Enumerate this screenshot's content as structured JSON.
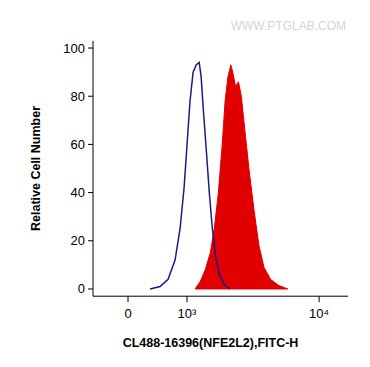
{
  "chart_data": {
    "type": "area",
    "watermark": "WWW.PTGLAB.COM",
    "x_label": "CL488-16396(NFE2L2),FITC-H",
    "y_label": "Relative Cell Number",
    "xlim": [
      -540,
      16000
    ],
    "xticks": [
      0,
      {
        "value": 1000,
        "label": "10³"
      },
      {
        "value": 10000,
        "label": "10⁴"
      }
    ],
    "ylim": [
      -3,
      103
    ],
    "yticks": [
      0,
      20,
      40,
      60,
      80,
      100
    ],
    "grid": false,
    "series": [
      {
        "type": "area",
        "color": "#e00000",
        "x": [
          1185,
          1312,
          1449,
          1593,
          1714,
          1848,
          1979,
          2084,
          2190,
          2304,
          2381,
          2503,
          2630,
          2760,
          2944,
          3141,
          3419,
          3717,
          4041,
          4510,
          5138,
          5985
        ],
        "values": [
          0,
          3,
          8,
          15,
          25,
          40,
          60,
          78,
          88,
          93,
          90,
          84,
          86,
          80,
          65,
          50,
          33,
          18,
          9,
          4,
          1.5,
          0
        ]
      },
      {
        "type": "line",
        "color": "#1a1a8c",
        "x": [
          329,
          489,
          627,
          756,
          854,
          937,
          1001,
          1067,
          1138,
          1211,
          1287,
          1338,
          1393,
          1476,
          1564,
          1656,
          1750,
          1884,
          2043,
          2266
        ],
        "values": [
          0,
          1,
          4,
          12,
          25,
          42,
          60,
          78,
          90,
          93,
          94,
          88,
          75,
          58,
          40,
          25,
          14,
          6,
          2,
          0
        ]
      }
    ]
  }
}
